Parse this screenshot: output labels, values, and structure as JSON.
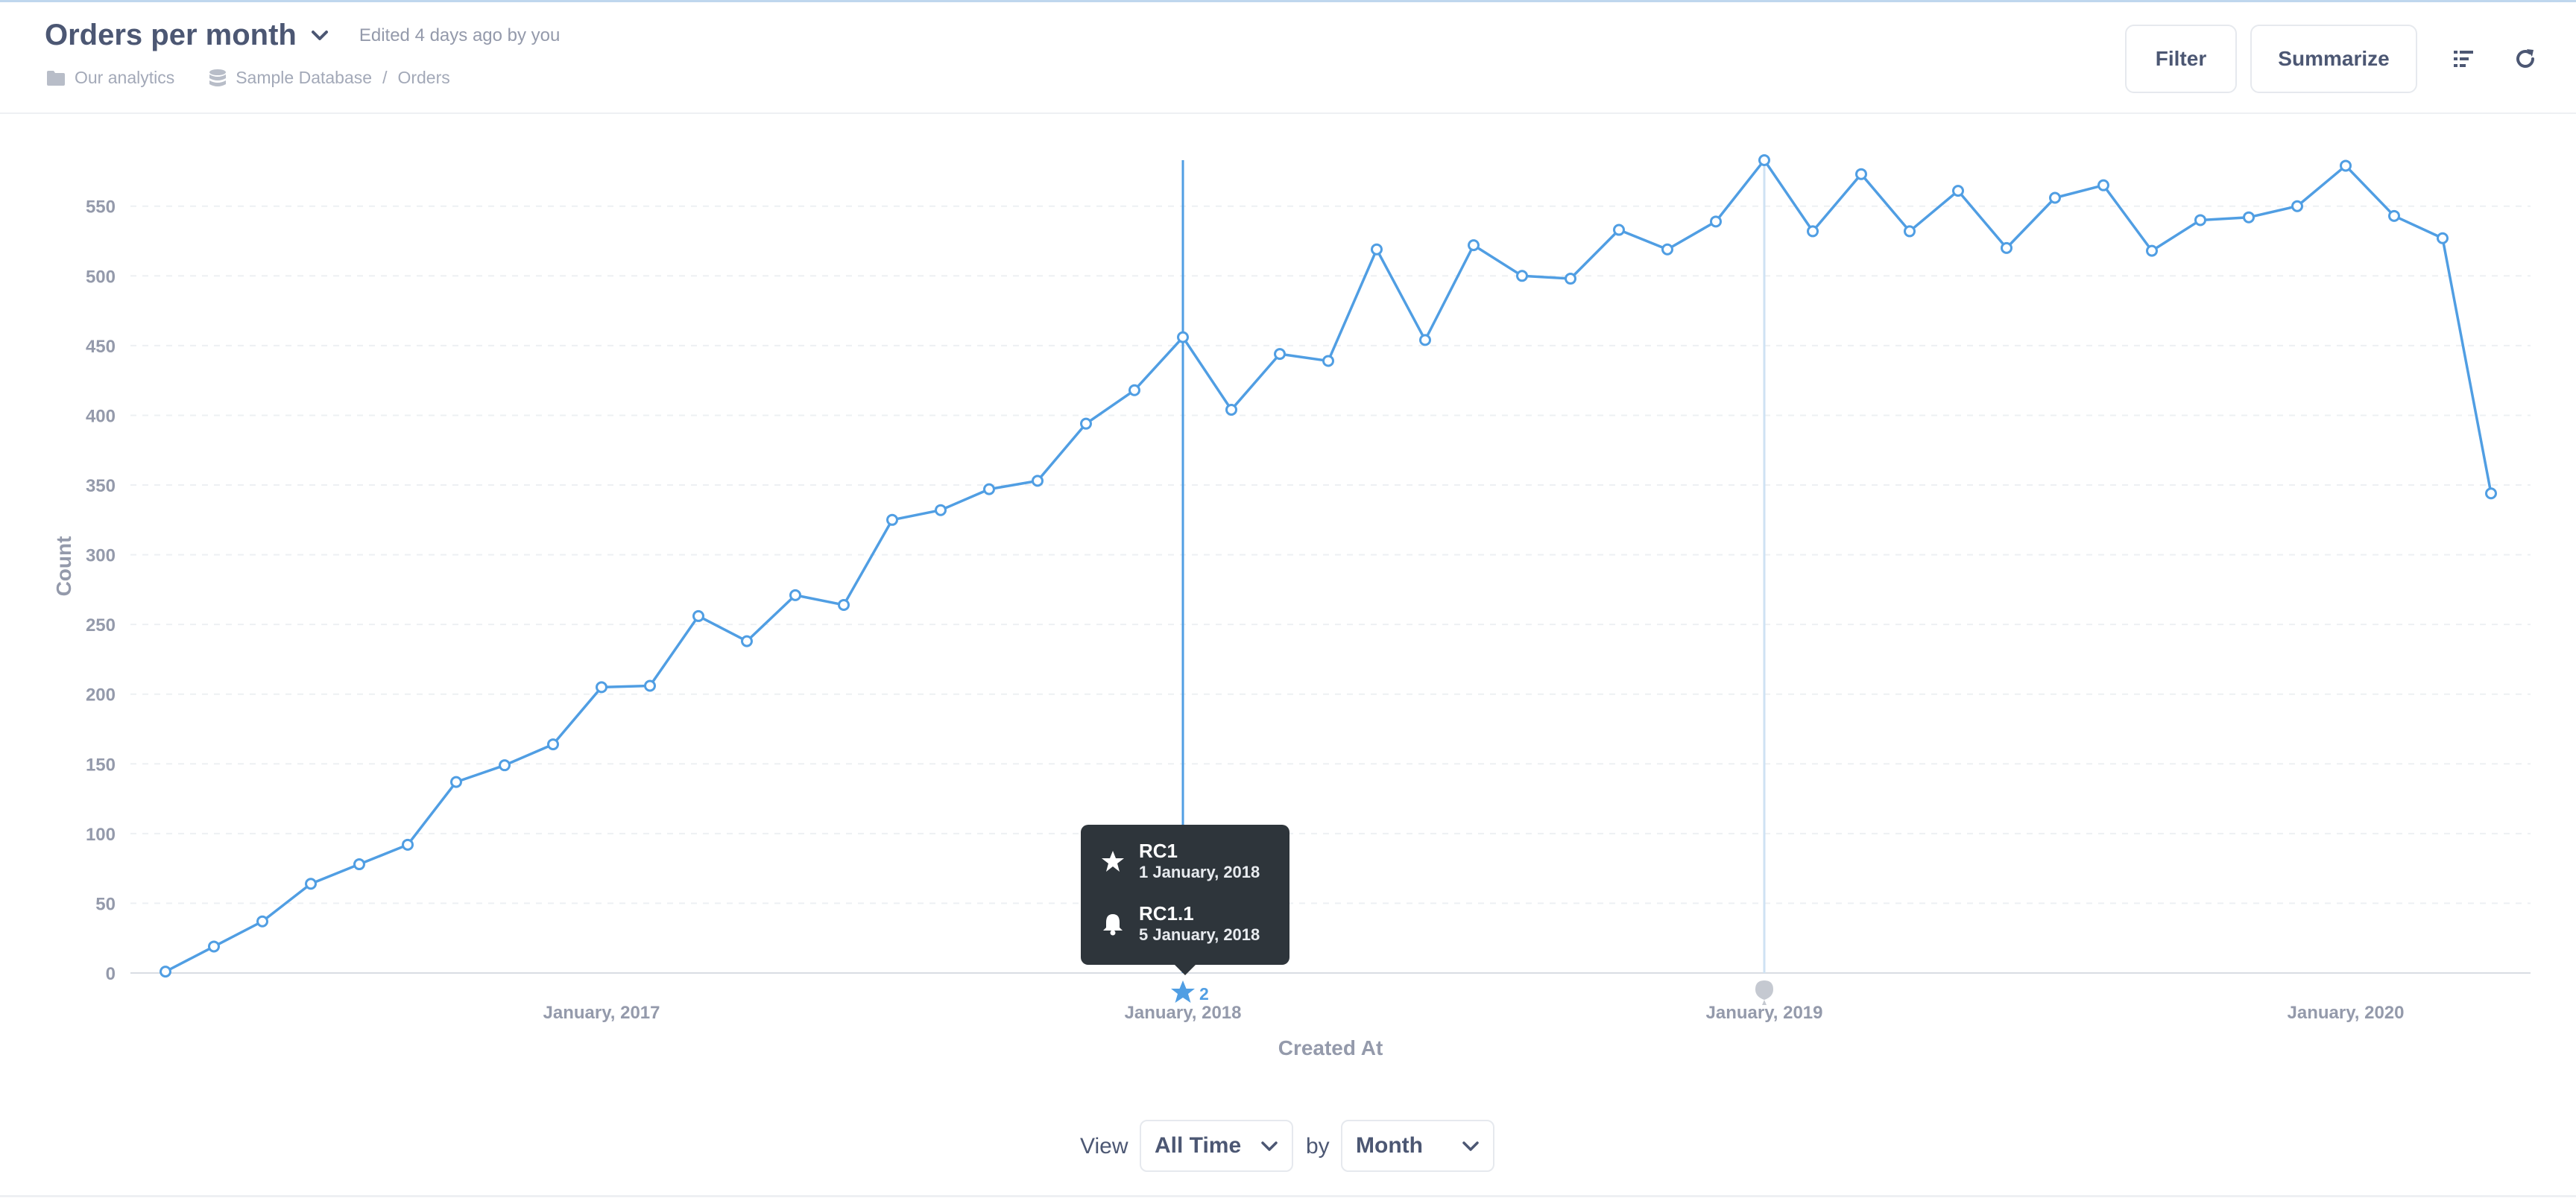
{
  "header": {
    "title": "Orders per month",
    "edited_text": "Edited 4 days ago by you",
    "breadcrumbs": {
      "collection": "Our analytics",
      "database": "Sample Database",
      "separator": "/",
      "table": "Orders"
    },
    "filter_label": "Filter",
    "summarize_label": "Summarize"
  },
  "colors": {
    "series": "#509ee3",
    "axis_text": "#949aab",
    "grid": "#edf0f3",
    "tooltip_bg": "#2e353b"
  },
  "chart_data": {
    "type": "line",
    "x": [
      "2016-04",
      "2016-05",
      "2016-06",
      "2016-07",
      "2016-08",
      "2016-09",
      "2016-10",
      "2016-11",
      "2016-12",
      "2017-01",
      "2017-02",
      "2017-03",
      "2017-04",
      "2017-05",
      "2017-06",
      "2017-07",
      "2017-08",
      "2017-09",
      "2017-10",
      "2017-11",
      "2017-12",
      "2018-01",
      "2018-02",
      "2018-03",
      "2018-04",
      "2018-05",
      "2018-06",
      "2018-07",
      "2018-08",
      "2018-09",
      "2018-10",
      "2018-11",
      "2018-12",
      "2019-01",
      "2019-02",
      "2019-03",
      "2019-04",
      "2019-05",
      "2019-06",
      "2019-07",
      "2019-08",
      "2019-09",
      "2019-10",
      "2019-11",
      "2019-12",
      "2020-01",
      "2020-02",
      "2020-03",
      "2020-04"
    ],
    "series": [
      {
        "values": [
          1,
          19,
          37,
          64,
          78,
          92,
          137,
          149,
          164,
          205,
          206,
          256,
          238,
          271,
          264,
          325,
          332,
          347,
          353,
          394,
          418,
          456,
          404,
          444,
          439,
          519,
          454,
          522,
          500,
          498,
          533,
          519,
          539,
          583,
          532,
          573,
          532,
          561,
          520,
          556,
          565,
          518,
          540,
          542,
          550,
          579,
          543,
          527,
          344
        ]
      }
    ],
    "xlabel": "Created At",
    "ylabel": "Count",
    "x_tick_labels": [
      "January, 2017",
      "January, 2018",
      "January, 2019",
      "January, 2020"
    ],
    "y_ticks": [
      0,
      50,
      100,
      150,
      200,
      250,
      300,
      350,
      400,
      450,
      500,
      550
    ],
    "ylim": [
      0,
      580
    ],
    "grid": true,
    "events": [
      {
        "date": "2018-01",
        "icon": "star-icon",
        "count_label": "2"
      },
      {
        "date": "2019-01",
        "icon": "balloon-icon",
        "count_label": ""
      }
    ]
  },
  "tooltip": {
    "items": [
      {
        "icon": "star-icon",
        "name": "RC1",
        "date": "1 January, 2018"
      },
      {
        "icon": "bell-icon",
        "name": "RC1.1",
        "date": "5 January, 2018"
      }
    ]
  },
  "footer": {
    "view_label": "View",
    "time_value": "All Time",
    "by_label": "by",
    "unit_value": "Month"
  }
}
